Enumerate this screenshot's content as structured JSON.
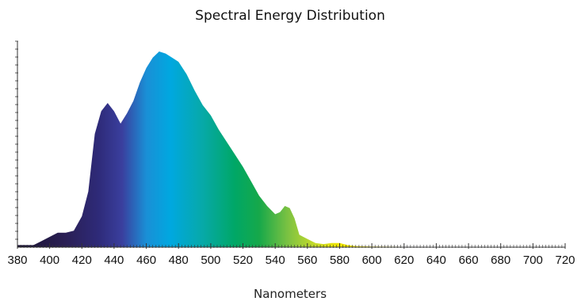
{
  "chart_data": {
    "type": "area",
    "title": "Spectral Energy Distribution",
    "xlabel": "Nanometers",
    "ylabel": "",
    "xlim": [
      380,
      720
    ],
    "ylim": [
      0,
      100
    ],
    "x_ticks": [
      "380",
      "400",
      "420",
      "440",
      "460",
      "480",
      "500",
      "520",
      "540",
      "560",
      "580",
      "600",
      "620",
      "640",
      "660",
      "680",
      "700",
      "720"
    ],
    "y_tick_labels_shown": false,
    "grid": false,
    "series": [
      {
        "x": [
          380,
          385,
          390,
          395,
          400,
          405,
          410,
          415,
          420,
          424,
          428,
          432,
          436,
          440,
          444,
          448,
          452,
          456,
          460,
          464,
          468,
          472,
          476,
          480,
          485,
          490,
          495,
          500,
          505,
          510,
          515,
          520,
          525,
          530,
          535,
          540,
          543,
          546,
          549,
          552,
          555,
          560,
          565,
          570,
          575,
          580,
          585,
          590,
          600,
          620,
          640,
          660,
          680,
          700,
          720
        ],
        "y": [
          1,
          1,
          1,
          3,
          5,
          7,
          7,
          8,
          15,
          27,
          55,
          66,
          70,
          66,
          60,
          65,
          71,
          80,
          87,
          92,
          95,
          94,
          92,
          90,
          84,
          76,
          69,
          64,
          57,
          51,
          45,
          39,
          32,
          25,
          20,
          16,
          17,
          20,
          19,
          14,
          6,
          4,
          2,
          1.5,
          2,
          2,
          1,
          0.5,
          0.3,
          0.2,
          0.2,
          0.2,
          0.2,
          0.2,
          0.2
        ]
      }
    ],
    "gradient_colors": [
      {
        "nm": 380,
        "color": "#1b1432"
      },
      {
        "nm": 410,
        "color": "#2a1f55"
      },
      {
        "nm": 430,
        "color": "#2e2a78"
      },
      {
        "nm": 445,
        "color": "#3a3f9e"
      },
      {
        "nm": 460,
        "color": "#1a8fd6"
      },
      {
        "nm": 475,
        "color": "#00a8e0"
      },
      {
        "nm": 495,
        "color": "#07a9a8"
      },
      {
        "nm": 515,
        "color": "#00a766"
      },
      {
        "nm": 530,
        "color": "#16a84a"
      },
      {
        "nm": 548,
        "color": "#7cc242"
      },
      {
        "nm": 565,
        "color": "#c8dc2a"
      },
      {
        "nm": 580,
        "color": "#f2e600"
      },
      {
        "nm": 600,
        "color": "#f7e400"
      }
    ]
  }
}
